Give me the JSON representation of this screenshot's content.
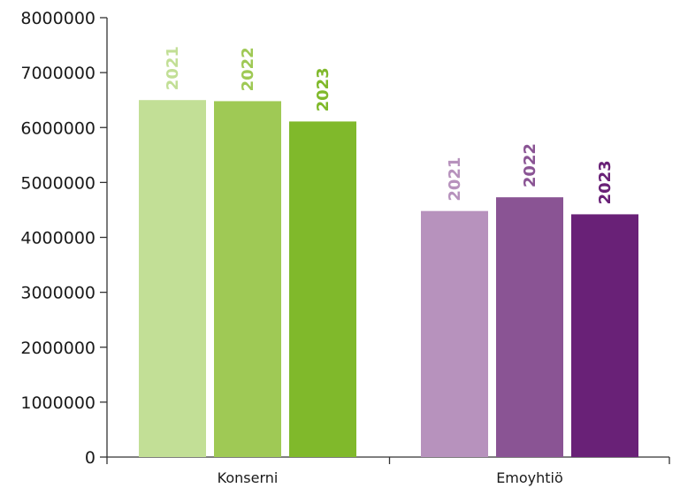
{
  "chart_data": {
    "type": "bar",
    "categories": [
      "Konserni",
      "Emoyhtiö"
    ],
    "series": [
      {
        "name": "2021",
        "values": [
          6500000,
          4480000
        ],
        "colors": [
          "#c2df96",
          "#b792bd"
        ]
      },
      {
        "name": "2022",
        "values": [
          6480000,
          4730000
        ],
        "colors": [
          "#9fc955",
          "#8a5494"
        ]
      },
      {
        "name": "2023",
        "values": [
          6110000,
          4420000
        ],
        "colors": [
          "#80b92b",
          "#692177"
        ]
      }
    ],
    "bar_labels_rotated": true,
    "ylim": [
      0,
      8000000
    ],
    "yticks": [
      "0",
      "1000000",
      "2000000",
      "3000000",
      "4000000",
      "5000000",
      "6000000",
      "7000000",
      "8000000"
    ],
    "title": "",
    "xlabel": "",
    "ylabel": "",
    "grid": false,
    "legend": "none"
  }
}
